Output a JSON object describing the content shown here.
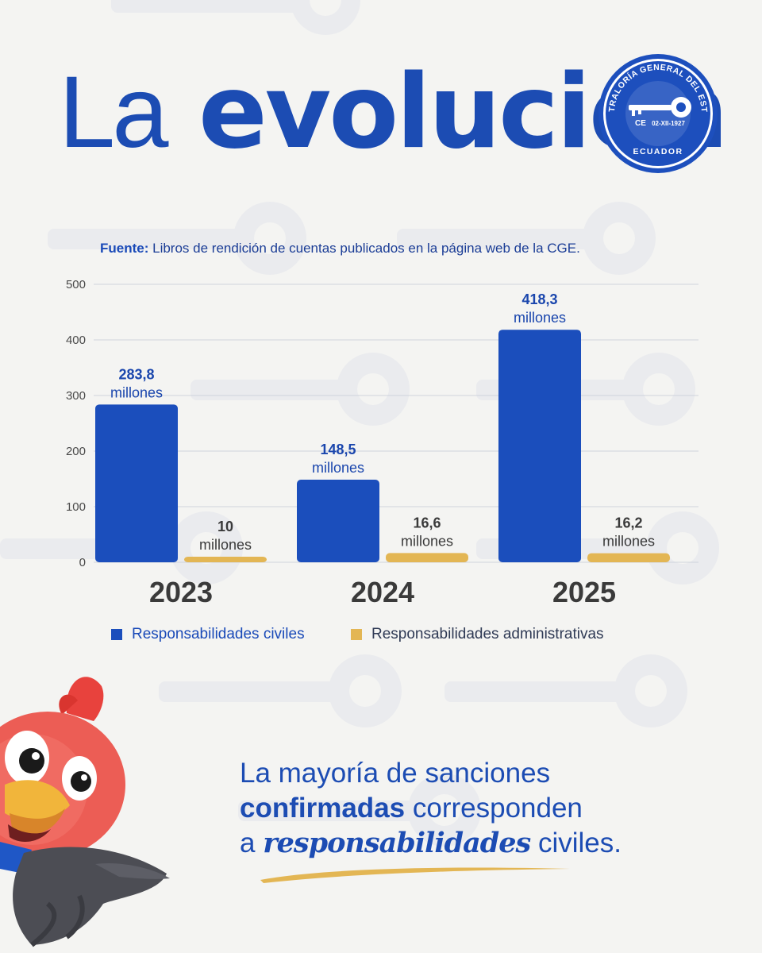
{
  "header": {
    "title_light": "La",
    "title_bold": "evolución"
  },
  "seal": {
    "arc_text": "CONTRALORÍA GENERAL DEL ESTADO",
    "date": "02-XII-1927",
    "country": "ECUADOR",
    "initials": "CE"
  },
  "source": {
    "label": "Fuente:",
    "text": "Libros de rendición de cuentas publicados en la página web de la CGE."
  },
  "chart_data": {
    "type": "bar",
    "categories": [
      "2023",
      "2024",
      "2025"
    ],
    "series": [
      {
        "name": "Responsabilidades civiles",
        "color": "#1b4ebc",
        "values": [
          283.8,
          148.5,
          418.3
        ],
        "labels": [
          "283,8",
          "148,5",
          "418,3"
        ]
      },
      {
        "name": "Responsabilidades administrativas",
        "color": "#e3b654",
        "values": [
          10,
          16.6,
          16.2
        ],
        "labels": [
          "10",
          "16,6",
          "16,2"
        ]
      }
    ],
    "unit_label": "millones",
    "yticks": [
      "500",
      "400",
      "300",
      "200",
      "100",
      "0"
    ],
    "ylim": [
      0,
      500
    ],
    "grid": true,
    "legend_position": "bottom"
  },
  "message": {
    "line1": "La mayoría de sanciones",
    "line2_bold": "confirmadas",
    "line2_rest": "corresponden",
    "line3_start": "a",
    "line3_script": "responsabilidades",
    "line3_end": "civiles."
  }
}
